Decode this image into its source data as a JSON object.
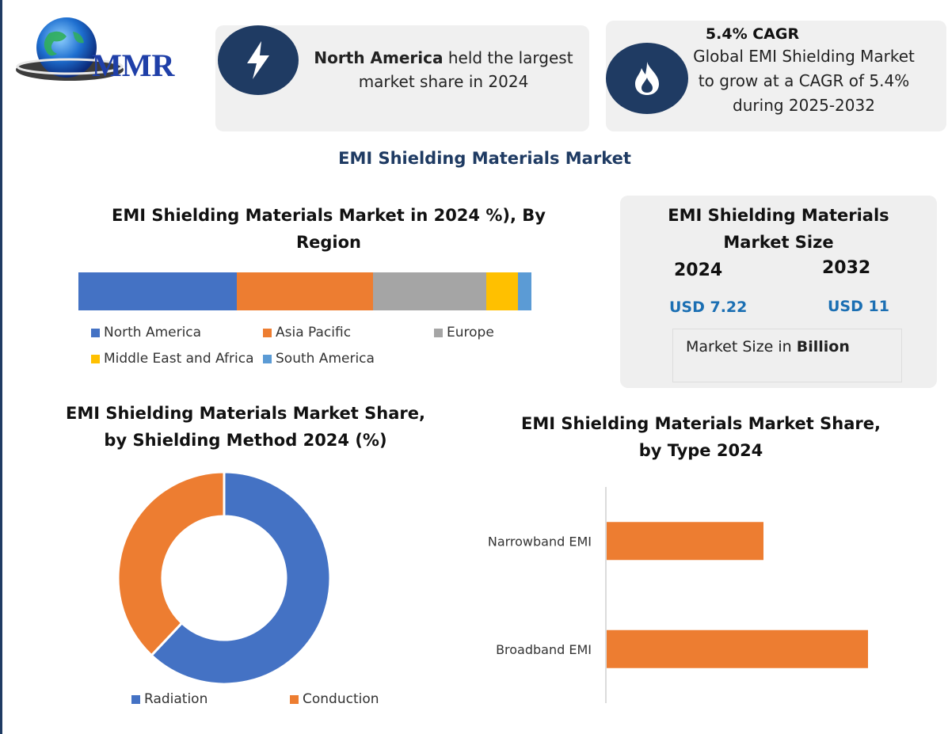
{
  "brand": {
    "logo_text": "MMR"
  },
  "highlight_card": {
    "icon": "lightning-icon",
    "bold_text": "North America",
    "text_line1_rest": " held the largest",
    "text_line2": "market share in 2024"
  },
  "cagr_card": {
    "icon": "flame-icon",
    "title": "5.4% CAGR",
    "line1": "Global EMI Shielding Market",
    "line2": "to grow at a CAGR of 5.4%",
    "line3": "during 2025-2032"
  },
  "main_title": "EMI Shielding Materials Market",
  "market_size": {
    "title_line1": "EMI Shielding Materials",
    "title_line2": "Market Size",
    "year_a": "2024",
    "year_b": "2032",
    "value_a": "USD 7.22",
    "value_b": "USD 11",
    "note_prefix": "Market Size in ",
    "note_bold": "Billion"
  },
  "colors": {
    "navy": "#1f3b63",
    "blue": "#4472c4",
    "orange": "#ed7d31",
    "gray": "#a5a5a5",
    "yellow": "#ffc000",
    "light_blue": "#5b9bd5"
  },
  "chart_data": [
    {
      "type": "bar",
      "stacked": true,
      "orientation": "horizontal",
      "title": "EMI Shielding Materials Market in 2024 %), By Region",
      "title_line1": "EMI Shielding Materials Market in 2024 %), By",
      "title_line2": "Region",
      "series": [
        {
          "name": "North America",
          "value": 35,
          "color": "#4472c4"
        },
        {
          "name": "Asia Pacific",
          "value": 30,
          "color": "#ed7d31"
        },
        {
          "name": "Europe",
          "value": 25,
          "color": "#a5a5a5"
        },
        {
          "name": "Middle East and Africa",
          "value": 7,
          "color": "#ffc000"
        },
        {
          "name": "South America",
          "value": 3,
          "color": "#5b9bd5"
        }
      ],
      "legend": "bottom"
    },
    {
      "type": "pie",
      "donut": true,
      "title": "EMI Shielding Materials Market Share, by Shielding Method 2024 (%)",
      "title_line1": "EMI Shielding Materials Market Share,",
      "title_line2": "by Shielding Method 2024 (%)",
      "slices": [
        {
          "name": "Radiation",
          "value": 62,
          "color": "#4472c4"
        },
        {
          "name": "Conduction",
          "value": 38,
          "color": "#ed7d31"
        }
      ],
      "legend": "bottom"
    },
    {
      "type": "bar",
      "orientation": "horizontal",
      "title": "EMI Shielding Materials Market Share, by Type 2024",
      "title_line1": "EMI Shielding Materials Market Share,",
      "title_line2": "by Type 2024",
      "categories": [
        "Narrowband EMI",
        "Broadband EMI"
      ],
      "values": [
        60,
        100
      ],
      "xlim": [
        0,
        100
      ],
      "color": "#ed7d31",
      "grid": false
    }
  ]
}
